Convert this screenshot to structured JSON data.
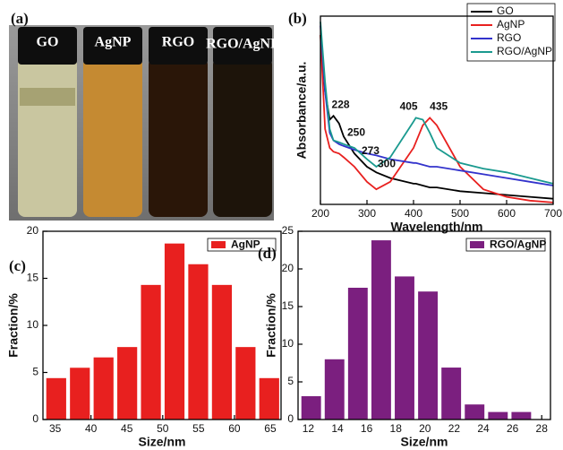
{
  "photo": {
    "label": "(a)",
    "vials": [
      "GO",
      "AgNP",
      "RGO",
      "RGO/AgNP"
    ]
  },
  "chart_data": [
    {
      "type": "line",
      "label": "(b)",
      "xlabel": "Wavelength/nm",
      "ylabel": "Absorbance/a.u.",
      "x": [
        200,
        210,
        220,
        228,
        240,
        250,
        273,
        300,
        320,
        350,
        400,
        405,
        420,
        435,
        450,
        500,
        550,
        600,
        650,
        700
      ],
      "xlim": [
        200,
        700
      ],
      "xticks": [
        200,
        300,
        400,
        500,
        600,
        700
      ],
      "ylim": [
        0,
        1
      ],
      "legend": "upper right",
      "peak_labels": [
        228,
        250,
        273,
        300,
        405,
        435
      ],
      "series": [
        {
          "name": "GO",
          "color": "#000000",
          "values": [
            0.9,
            0.6,
            0.45,
            0.47,
            0.43,
            0.36,
            0.27,
            0.2,
            0.17,
            0.14,
            0.11,
            0.11,
            0.1,
            0.09,
            0.09,
            0.07,
            0.06,
            0.05,
            0.04,
            0.03
          ]
        },
        {
          "name": "AgNP",
          "color": "#e8201f",
          "values": [
            0.9,
            0.4,
            0.3,
            0.28,
            0.27,
            0.25,
            0.2,
            0.12,
            0.08,
            0.12,
            0.3,
            0.33,
            0.42,
            0.46,
            0.42,
            0.2,
            0.08,
            0.04,
            0.02,
            0.01
          ]
        },
        {
          "name": "RGO",
          "color": "#3333cc",
          "values": [
            0.95,
            0.6,
            0.38,
            0.34,
            0.32,
            0.31,
            0.29,
            0.27,
            0.26,
            0.24,
            0.22,
            0.22,
            0.21,
            0.2,
            0.2,
            0.18,
            0.16,
            0.14,
            0.12,
            0.1
          ]
        },
        {
          "name": "RGO/AgNP",
          "color": "#1a9a8f",
          "values": [
            0.97,
            0.65,
            0.4,
            0.34,
            0.33,
            0.32,
            0.3,
            0.24,
            0.2,
            0.25,
            0.44,
            0.46,
            0.45,
            0.38,
            0.3,
            0.22,
            0.19,
            0.17,
            0.14,
            0.11
          ]
        }
      ]
    },
    {
      "type": "histogram",
      "label": "(c)",
      "xlabel": "Size/nm",
      "ylabel": "Fraction/%",
      "bins": [
        33.5,
        36.8,
        40.1,
        43.4,
        46.7,
        50,
        53.3,
        56.6,
        59.9,
        63.2,
        66.5
      ],
      "xlim": [
        33.3,
        66.5
      ],
      "xticks": [
        35,
        40,
        45,
        50,
        55,
        60,
        65
      ],
      "ylim": [
        0,
        20
      ],
      "yticks": [
        0,
        5,
        10,
        15,
        20
      ],
      "legend": "upper right",
      "series": [
        {
          "name": "AgNP",
          "color": "#e8201f",
          "values": [
            4.4,
            5.5,
            6.6,
            7.7,
            14.3,
            18.7,
            16.5,
            14.3,
            7.7,
            4.4
          ]
        }
      ]
    },
    {
      "type": "histogram",
      "label": "(d)",
      "xlabel": "Size/nm",
      "ylabel": "Fraction/%",
      "bins": [
        11.4,
        13,
        14.6,
        16.2,
        17.8,
        19.4,
        21,
        22.6,
        24.2,
        25.8,
        27.4
      ],
      "xlim": [
        11.3,
        28.6
      ],
      "xticks": [
        12,
        14,
        16,
        18,
        20,
        22,
        24,
        26,
        28
      ],
      "ylim": [
        0,
        25
      ],
      "yticks": [
        0,
        5,
        10,
        15,
        20,
        25
      ],
      "legend": "upper right",
      "series": [
        {
          "name": "RGO/AgNP",
          "color": "#7b1f7f",
          "values": [
            3.1,
            8,
            17.5,
            23.8,
            19,
            17,
            6.9,
            2,
            1,
            1
          ]
        }
      ]
    }
  ]
}
